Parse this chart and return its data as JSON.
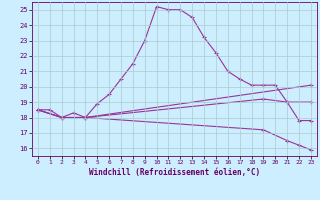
{
  "xlabel": "Windchill (Refroidissement éolien,°C)",
  "bg_color": "#cceeff",
  "grid_color": "#aacccc",
  "line_color": "#993399",
  "xlim": [
    -0.5,
    23.5
  ],
  "ylim": [
    15.5,
    25.5
  ],
  "xticks": [
    0,
    1,
    2,
    3,
    4,
    5,
    6,
    7,
    8,
    9,
    10,
    11,
    12,
    13,
    14,
    15,
    16,
    17,
    18,
    19,
    20,
    21,
    22,
    23
  ],
  "yticks": [
    16,
    17,
    18,
    19,
    20,
    21,
    22,
    23,
    24,
    25
  ],
  "curve1_x": [
    0,
    1,
    2,
    3,
    4,
    5,
    6,
    7,
    8,
    9,
    10,
    11,
    12,
    13,
    14,
    15,
    16,
    17,
    18,
    19,
    20,
    21,
    22,
    23
  ],
  "curve1_y": [
    18.5,
    18.5,
    18.0,
    18.3,
    18.0,
    18.9,
    19.5,
    20.5,
    21.5,
    23.0,
    25.2,
    25.0,
    25.0,
    24.5,
    23.2,
    22.2,
    21.0,
    20.5,
    20.1,
    20.1,
    20.1,
    19.0,
    17.8,
    17.8
  ],
  "curve2_x": [
    0,
    2,
    4,
    23
  ],
  "curve2_y": [
    18.5,
    18.0,
    18.0,
    20.1
  ],
  "curve3_x": [
    0,
    2,
    4,
    19,
    21,
    23
  ],
  "curve3_y": [
    18.5,
    18.0,
    18.0,
    19.2,
    19.0,
    19.0
  ],
  "curve4_x": [
    0,
    2,
    4,
    19,
    21,
    22,
    23
  ],
  "curve4_y": [
    18.5,
    18.0,
    18.0,
    17.2,
    16.5,
    16.2,
    15.9
  ]
}
